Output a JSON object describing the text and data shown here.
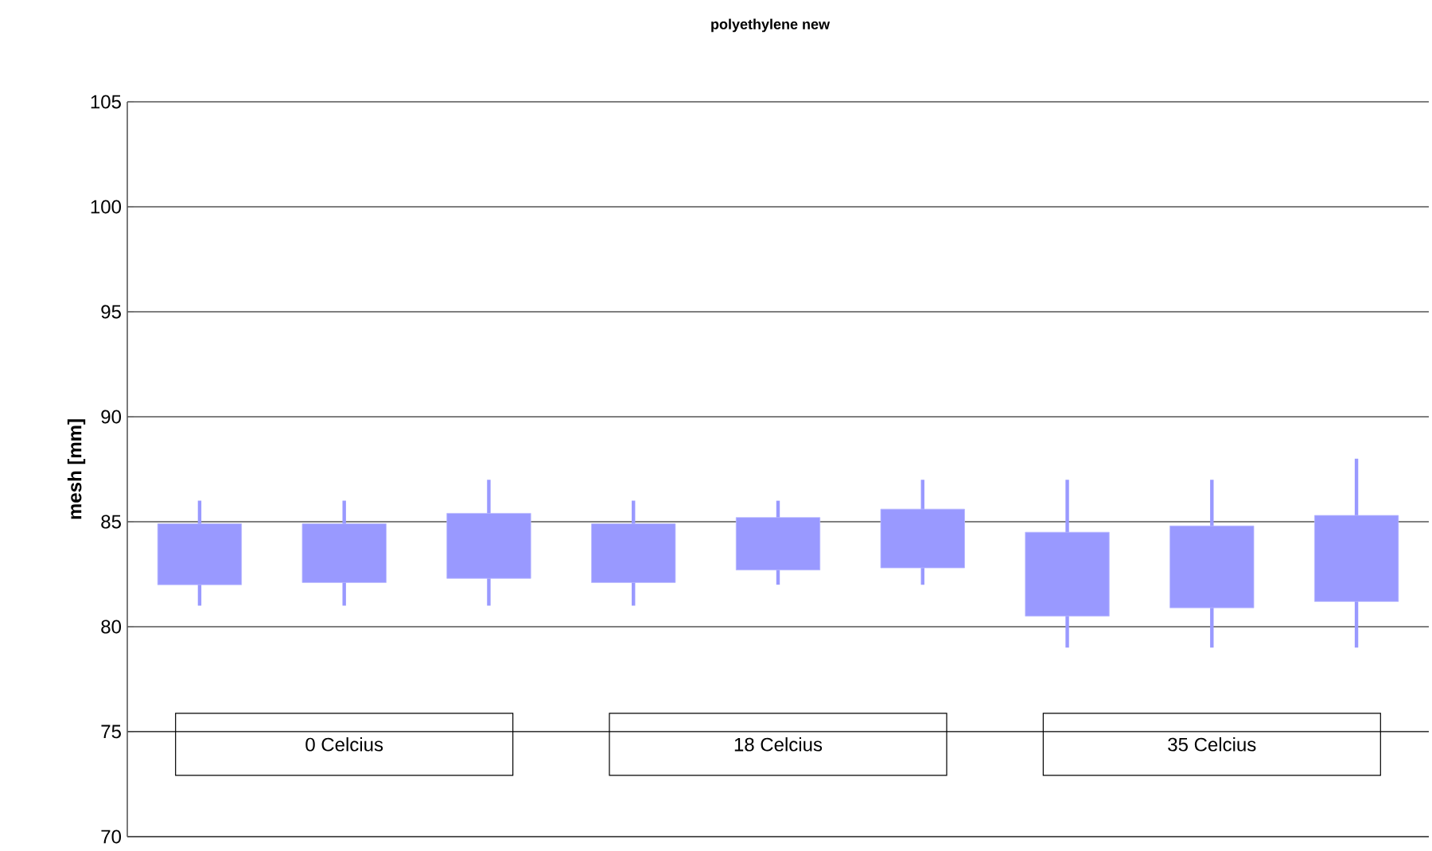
{
  "chart_data": {
    "type": "candlestick",
    "title": "polyethylene new",
    "ylabel": "mesh [mm]",
    "categories": [
      null,
      null,
      null,
      null,
      null,
      null,
      null,
      null,
      null
    ],
    "ohlc": [
      [
        82.0,
        86,
        81,
        84.9
      ],
      [
        82.1,
        86,
        81,
        84.9
      ],
      [
        82.3,
        87,
        81,
        85.4
      ],
      [
        82.1,
        86,
        81,
        84.9
      ],
      [
        82.7,
        86,
        82,
        85.2
      ],
      [
        82.8,
        87,
        82,
        85.6
      ],
      [
        80.5,
        87,
        79,
        84.5
      ],
      [
        80.9,
        87,
        79,
        84.8
      ],
      [
        81.2,
        88,
        79,
        85.3
      ]
    ],
    "color": "#9999ff",
    "ylim": [
      70,
      105
    ],
    "yticks": [
      70,
      75,
      80,
      85,
      90,
      95,
      100,
      105
    ],
    "grid": "y",
    "annotations": [
      "0 Celcius",
      "18 Celcius",
      "35 Celcius"
    ]
  }
}
